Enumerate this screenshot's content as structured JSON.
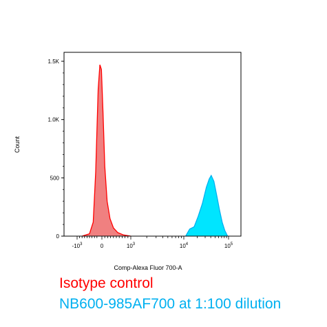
{
  "chart_data": {
    "type": "area",
    "ylabel": "Count",
    "xlabel": "Comp-Alexa Fluor 700-A",
    "x_scale": "biexponential",
    "x_ticks": [
      {
        "value": -1000,
        "base": "-10",
        "exp": "3"
      },
      {
        "value": 0,
        "base": "0",
        "exp": ""
      },
      {
        "value": 1000,
        "base": "10",
        "exp": "3"
      },
      {
        "value": 10000,
        "base": "10",
        "exp": "4"
      },
      {
        "value": 100000,
        "base": "10",
        "exp": "5"
      }
    ],
    "y_ticks": [
      {
        "value": 0,
        "label": "0"
      },
      {
        "value": 500,
        "label": "500"
      },
      {
        "value": 1000,
        "label": "1.0K"
      },
      {
        "value": 1500,
        "label": "1.5K"
      }
    ],
    "ylim": [
      0,
      1500
    ],
    "grid": false,
    "legend_position": "below",
    "series": [
      {
        "name": "Isotype control",
        "color": "#ff0000",
        "fill": "#f08080",
        "points": [
          [
            -800,
            0
          ],
          [
            -500,
            20
          ],
          [
            -350,
            120
          ],
          [
            -250,
            550
          ],
          [
            -150,
            1260
          ],
          [
            -80,
            1470
          ],
          [
            -20,
            1430
          ],
          [
            40,
            1050
          ],
          [
            100,
            600
          ],
          [
            180,
            300
          ],
          [
            280,
            150
          ],
          [
            400,
            70
          ],
          [
            550,
            30
          ],
          [
            750,
            10
          ],
          [
            1000,
            0
          ]
        ]
      },
      {
        "name": "NB600-985AF700 at 1:100 dilution",
        "color": "#00b0f0",
        "fill": "#00e5ff",
        "points": [
          [
            11000,
            0
          ],
          [
            13500,
            60
          ],
          [
            17000,
            80
          ],
          [
            21000,
            170
          ],
          [
            26000,
            280
          ],
          [
            32000,
            420
          ],
          [
            37000,
            490
          ],
          [
            41000,
            520
          ],
          [
            47000,
            470
          ],
          [
            55000,
            340
          ],
          [
            63000,
            220
          ],
          [
            72000,
            120
          ],
          [
            82000,
            50
          ],
          [
            95000,
            0
          ]
        ]
      }
    ]
  }
}
